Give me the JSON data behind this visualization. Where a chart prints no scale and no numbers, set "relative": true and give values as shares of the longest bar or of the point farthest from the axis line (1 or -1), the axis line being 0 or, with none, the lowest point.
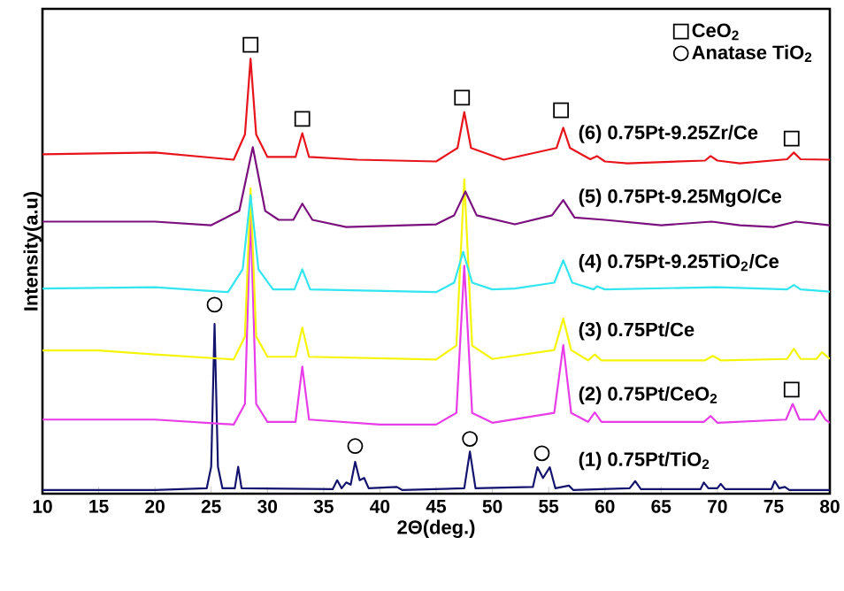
{
  "chart_data": {
    "type": "line",
    "relative": true,
    "xlabel": "2Θ(deg.)",
    "ylabel": "Intensity(a.u)",
    "xlim": [
      10,
      80
    ],
    "xticks": [
      10,
      15,
      20,
      25,
      30,
      35,
      40,
      45,
      50,
      55,
      60,
      65,
      70,
      75,
      80
    ],
    "tick_labels": "x",
    "legend": "top right",
    "grid": false,
    "series": [
      {
        "name": "(1) 0.75Pt/TiO$_{2}$",
        "color": "#14146e",
        "x": [
          10,
          20,
          24.6,
          25.0,
          25.3,
          25.6,
          26.0,
          27.1,
          27.4,
          27.7,
          35.8,
          36.2,
          36.6,
          37.0,
          37.4,
          37.8,
          38.2,
          38.6,
          39.0,
          41.5,
          42,
          47.5,
          48.0,
          48.5,
          53.6,
          54.0,
          54.5,
          55.1,
          55.6,
          56.8,
          57.2,
          62.2,
          62.7,
          63.2,
          68.5,
          68.8,
          69.2,
          70.0,
          70.3,
          70.7,
          74.8,
          75.1,
          75.5,
          76,
          76.4,
          80
        ],
        "values": [
          0.008,
          0.008,
          0.012,
          0.06,
          0.378,
          0.06,
          0.012,
          0.012,
          0.06,
          0.012,
          0.01,
          0.03,
          0.012,
          0.025,
          0.02,
          0.071,
          0.03,
          0.035,
          0.012,
          0.015,
          0.008,
          0.012,
          0.094,
          0.012,
          0.015,
          0.059,
          0.035,
          0.059,
          0.012,
          0.018,
          0.008,
          0.012,
          0.028,
          0.01,
          0.01,
          0.025,
          0.012,
          0.012,
          0.022,
          0.01,
          0.01,
          0.028,
          0.012,
          0.015,
          0.008,
          0.008
        ]
      },
      {
        "name": "(2) 0.75Pt/CeO$_{2}$",
        "color": "#e83ce8",
        "x": [
          10,
          20,
          27,
          28.0,
          28.5,
          29.0,
          30,
          32.5,
          33.1,
          33.7,
          40,
          45,
          46.8,
          47.5,
          48.2,
          50,
          55.5,
          56.3,
          57.0,
          58.5,
          59.1,
          59.7,
          68.8,
          69.4,
          70,
          76.1,
          76.7,
          77.3,
          78.6,
          79.1,
          79.6,
          80
        ],
        "values": [
          0.165,
          0.165,
          0.154,
          0.2,
          0.626,
          0.2,
          0.16,
          0.16,
          0.283,
          0.165,
          0.154,
          0.154,
          0.18,
          0.508,
          0.18,
          0.158,
          0.18,
          0.331,
          0.18,
          0.16,
          0.181,
          0.16,
          0.16,
          0.173,
          0.158,
          0.165,
          0.2,
          0.165,
          0.165,
          0.185,
          0.165,
          0.158
        ]
      },
      {
        "name": "(3) 0.75Pt/Ce",
        "color": "#f5f50a",
        "x": [
          10,
          15,
          20,
          27,
          28.0,
          28.5,
          29.0,
          30,
          32.5,
          33.1,
          33.7,
          45,
          46.8,
          47.5,
          48.2,
          50,
          55.5,
          56.3,
          57,
          58.5,
          59.1,
          59.7,
          68.9,
          69.6,
          70.3,
          76.2,
          76.8,
          77.4,
          78.8,
          79.3,
          80
        ],
        "values": [
          0.319,
          0.319,
          0.31,
          0.299,
          0.35,
          0.68,
          0.35,
          0.305,
          0.305,
          0.37,
          0.305,
          0.299,
          0.33,
          0.7,
          0.33,
          0.3,
          0.32,
          0.39,
          0.32,
          0.297,
          0.31,
          0.297,
          0.297,
          0.307,
          0.297,
          0.3,
          0.323,
          0.3,
          0.3,
          0.315,
          0.3
        ]
      },
      {
        "name": "(4) 0.75Pt-9.25TiO$_{2}$/Ce",
        "color": "#33e5ef",
        "x": [
          10,
          20,
          26.5,
          27.8,
          28.5,
          29.2,
          30.5,
          32.4,
          33.1,
          33.8,
          45,
          46.6,
          47.4,
          48.2,
          50,
          52,
          55.5,
          56.3,
          57.1,
          59,
          59.3,
          60,
          70,
          76.2,
          76.8,
          77.4,
          80
        ],
        "values": [
          0.457,
          0.46,
          0.449,
          0.5,
          0.665,
          0.5,
          0.455,
          0.455,
          0.5,
          0.455,
          0.449,
          0.47,
          0.539,
          0.47,
          0.455,
          0.457,
          0.47,
          0.52,
          0.47,
          0.455,
          0.462,
          0.455,
          0.46,
          0.455,
          0.465,
          0.455,
          0.45
        ]
      },
      {
        "name": "(5) 0.75Pt-9.25MgO/Ce",
        "color": "#7b0f7e",
        "x": [
          10,
          20,
          25,
          27.5,
          28.7,
          29.8,
          31,
          32.3,
          33.1,
          34,
          37,
          45,
          46.6,
          47.6,
          48.6,
          52,
          55.3,
          56.3,
          57.3,
          60,
          65,
          69.5,
          72,
          75,
          77,
          80
        ],
        "values": [
          0.606,
          0.606,
          0.598,
          0.63,
          0.772,
          0.63,
          0.61,
          0.61,
          0.646,
          0.61,
          0.594,
          0.6,
          0.62,
          0.673,
          0.62,
          0.6,
          0.62,
          0.654,
          0.615,
          0.61,
          0.598,
          0.606,
          0.598,
          0.594,
          0.606,
          0.598
        ]
      },
      {
        "name": "(6) 0.75Pt-9.25Zr/Ce",
        "color": "#e8141c",
        "x": [
          10,
          20,
          27,
          28.0,
          28.5,
          29.0,
          30,
          32.5,
          33.1,
          33.7,
          38,
          45,
          46.9,
          47.5,
          48.1,
          51,
          55.7,
          56.3,
          56.9,
          58.7,
          59.3,
          60,
          62,
          68.9,
          69.4,
          70,
          72,
          76.2,
          76.8,
          77.4,
          80
        ],
        "values": [
          0.756,
          0.76,
          0.744,
          0.8,
          0.969,
          0.8,
          0.75,
          0.75,
          0.803,
          0.75,
          0.744,
          0.74,
          0.77,
          0.85,
          0.77,
          0.744,
          0.77,
          0.815,
          0.77,
          0.745,
          0.752,
          0.74,
          0.736,
          0.742,
          0.752,
          0.742,
          0.736,
          0.745,
          0.76,
          0.745,
          0.744
        ]
      },
      {
        "name": "CeO$_{2}$",
        "type": "scatter",
        "marker": "square",
        "color": "#000000",
        "x": [
          28.5,
          33.1,
          47.3,
          56.1,
          76.6,
          76.6
        ],
        "values": [
          1.0,
          0.835,
          0.882,
          0.854,
          0.791,
          0.232
        ]
      },
      {
        "name": "Anatase TiO$_{2}$",
        "type": "scatter",
        "marker": "circle",
        "color": "#000000",
        "x": [
          25.3,
          37.8,
          48.0,
          54.4
        ],
        "values": [
          0.421,
          0.106,
          0.122,
          0.09
        ]
      }
    ]
  }
}
